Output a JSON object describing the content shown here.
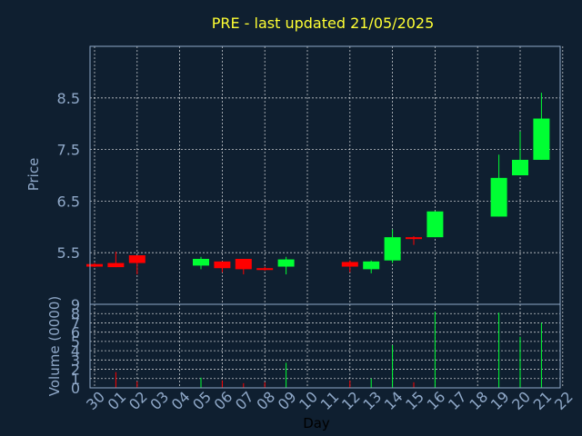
{
  "chart_data": {
    "type": "candlestick",
    "title": "PRE - last updated 21/05/2025",
    "xlabel": "Day",
    "price_ylabel": "Price",
    "volume_ylabel": "Volume (0000)",
    "x_ticks": [
      "30",
      "01",
      "02",
      "03",
      "04",
      "05",
      "06",
      "07",
      "08",
      "09",
      "10",
      "11",
      "12",
      "13",
      "14",
      "15",
      "16",
      "17",
      "18",
      "19",
      "20",
      "21",
      "22"
    ],
    "price_ticks": [
      "5.5",
      "6.5",
      "7.5",
      "8.5"
    ],
    "volume_ticks": [
      "0",
      "1",
      "2",
      "3",
      "4",
      "5",
      "6",
      "7",
      "8",
      "9"
    ],
    "price_ylim": [
      4.5,
      9.5
    ],
    "volume_ylim": [
      0,
      9
    ],
    "colors": {
      "up": "#00ff33",
      "down": "#ff0000",
      "background": "#0f1f30",
      "grid": "#ffffff",
      "text": "#8fa8c8",
      "title": "#ffff33"
    },
    "candles": [
      {
        "day": "30",
        "open": 5.28,
        "high": 5.3,
        "low": 5.22,
        "close": 5.23,
        "volume": 0.0
      },
      {
        "day": "01",
        "open": 5.3,
        "high": 5.52,
        "low": 5.22,
        "close": 5.22,
        "volume": 1.7
      },
      {
        "day": "02",
        "open": 5.45,
        "high": 5.45,
        "low": 5.08,
        "close": 5.3,
        "volume": 0.7
      },
      {
        "day": "05",
        "open": 5.25,
        "high": 5.42,
        "low": 5.18,
        "close": 5.38,
        "volume": 1.1
      },
      {
        "day": "06",
        "open": 5.33,
        "high": 5.33,
        "low": 5.12,
        "close": 5.2,
        "volume": 0.8
      },
      {
        "day": "07",
        "open": 5.38,
        "high": 5.38,
        "low": 5.08,
        "close": 5.18,
        "volume": 0.5
      },
      {
        "day": "08",
        "open": 5.2,
        "high": 5.23,
        "low": 5.15,
        "close": 5.18,
        "volume": 0.6
      },
      {
        "day": "09",
        "open": 5.23,
        "high": 5.42,
        "low": 5.08,
        "close": 5.37,
        "volume": 2.7
      },
      {
        "day": "12",
        "open": 5.32,
        "high": 5.35,
        "low": 5.12,
        "close": 5.23,
        "volume": 0.8
      },
      {
        "day": "13",
        "open": 5.18,
        "high": 5.35,
        "low": 5.1,
        "close": 5.33,
        "volume": 1.0
      },
      {
        "day": "14",
        "open": 5.35,
        "high": 5.95,
        "low": 5.3,
        "close": 5.8,
        "volume": 4.6
      },
      {
        "day": "15",
        "open": 5.8,
        "high": 5.82,
        "low": 5.65,
        "close": 5.77,
        "volume": 0.6
      },
      {
        "day": "16",
        "open": 5.8,
        "high": 6.3,
        "low": 5.8,
        "close": 6.3,
        "volume": 8.2
      },
      {
        "day": "19",
        "open": 6.2,
        "high": 7.4,
        "low": 6.2,
        "close": 6.95,
        "volume": 8.1
      },
      {
        "day": "20",
        "open": 7.0,
        "high": 7.85,
        "low": 7.0,
        "close": 7.3,
        "volume": 5.5
      },
      {
        "day": "21",
        "open": 7.3,
        "high": 8.6,
        "low": 7.3,
        "close": 8.1,
        "volume": 7.0
      }
    ]
  }
}
